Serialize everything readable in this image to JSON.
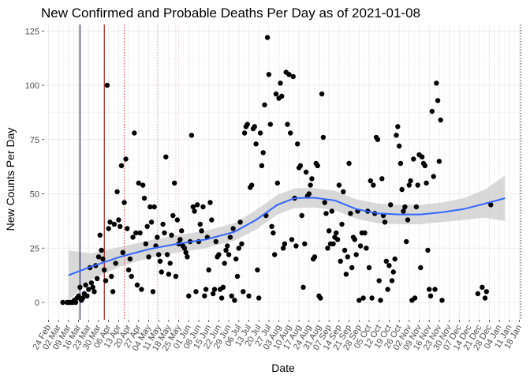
{
  "chart_data": {
    "type": "scatter",
    "title": "New Confirmed and Probable Deaths Per Day as of 2021-01-08",
    "xlabel": "Date",
    "ylabel": "New Counts Per Day",
    "xlim_day": [
      -3,
      332
    ],
    "ylim": [
      -8,
      128
    ],
    "y_ticks": [
      0,
      25,
      50,
      75,
      100,
      125
    ],
    "x_ticks": [
      {
        "day": 0,
        "label": "24 Feb"
      },
      {
        "day": 7,
        "label": "02 Mar"
      },
      {
        "day": 14,
        "label": "09 Mar"
      },
      {
        "day": 21,
        "label": "16 Mar"
      },
      {
        "day": 28,
        "label": "23 Mar"
      },
      {
        "day": 35,
        "label": "30 Mar"
      },
      {
        "day": 42,
        "label": "06 Apr"
      },
      {
        "day": 49,
        "label": "13 Apr"
      },
      {
        "day": 56,
        "label": "20 Apr"
      },
      {
        "day": 63,
        "label": "27 Apr"
      },
      {
        "day": 70,
        "label": "04 May"
      },
      {
        "day": 77,
        "label": "11 May"
      },
      {
        "day": 84,
        "label": "18 May"
      },
      {
        "day": 91,
        "label": "25 May"
      },
      {
        "day": 98,
        "label": "01 Jun"
      },
      {
        "day": 105,
        "label": "08 Jun"
      },
      {
        "day": 112,
        "label": "15 Jun"
      },
      {
        "day": 119,
        "label": "22 Jun"
      },
      {
        "day": 126,
        "label": "29 Jun"
      },
      {
        "day": 133,
        "label": "06 Jul"
      },
      {
        "day": 140,
        "label": "13 Jul"
      },
      {
        "day": 147,
        "label": "20 Jul"
      },
      {
        "day": 154,
        "label": "27 Jul"
      },
      {
        "day": 161,
        "label": "03 Aug"
      },
      {
        "day": 168,
        "label": "10 Aug"
      },
      {
        "day": 175,
        "label": "17 Aug"
      },
      {
        "day": 182,
        "label": "24 Aug"
      },
      {
        "day": 189,
        "label": "31 Aug"
      },
      {
        "day": 196,
        "label": "07 Sep"
      },
      {
        "day": 203,
        "label": "14 Sep"
      },
      {
        "day": 210,
        "label": "21 Sep"
      },
      {
        "day": 217,
        "label": "28 Sep"
      },
      {
        "day": 224,
        "label": "05 Oct"
      },
      {
        "day": 231,
        "label": "12 Oct"
      },
      {
        "day": 238,
        "label": "19 Oct"
      },
      {
        "day": 245,
        "label": "26 Oct"
      },
      {
        "day": 252,
        "label": "02 Nov"
      },
      {
        "day": 259,
        "label": "09 Nov"
      },
      {
        "day": 266,
        "label": "16 Nov"
      },
      {
        "day": 273,
        "label": "23 Nov"
      },
      {
        "day": 280,
        "label": "30 Nov"
      },
      {
        "day": 287,
        "label": "07 Dec"
      },
      {
        "day": 294,
        "label": "14 Dec"
      },
      {
        "day": 301,
        "label": "21 Dec"
      },
      {
        "day": 308,
        "label": "28 Dec"
      },
      {
        "day": 315,
        "label": "04 Jan"
      },
      {
        "day": 322,
        "label": "11 Jan"
      },
      {
        "day": 329,
        "label": "18 Jan"
      }
    ],
    "vertical_lines": [
      {
        "day": 22,
        "color": "#00004d",
        "style": "solid"
      },
      {
        "day": 39,
        "color": "#8b0000",
        "style": "solid"
      },
      {
        "day": 53,
        "color": "#e33b3b",
        "style": "dotted"
      },
      {
        "day": 76,
        "color": "#ff9999",
        "style": "dotted"
      },
      {
        "day": 89,
        "color": "#ffb6c1",
        "style": "dotted"
      },
      {
        "day": 330,
        "color": "#333333",
        "style": "dotted"
      }
    ],
    "smooth_line": {
      "color": "#3366ff",
      "ribbon_color": "#cccccc",
      "points": [
        {
          "x": 14,
          "y": 12.5,
          "se": 11.5
        },
        {
          "x": 30,
          "y": 16.5,
          "se": 6
        },
        {
          "x": 50,
          "y": 21,
          "se": 4.5
        },
        {
          "x": 70,
          "y": 24.5,
          "se": 4
        },
        {
          "x": 90,
          "y": 27,
          "se": 4
        },
        {
          "x": 110,
          "y": 29,
          "se": 4
        },
        {
          "x": 130,
          "y": 32.5,
          "se": 4
        },
        {
          "x": 145,
          "y": 38,
          "se": 4.5
        },
        {
          "x": 160,
          "y": 45,
          "se": 4.5
        },
        {
          "x": 172,
          "y": 48,
          "se": 4.5
        },
        {
          "x": 185,
          "y": 48.2,
          "se": 4.5
        },
        {
          "x": 200,
          "y": 47,
          "se": 4.5
        },
        {
          "x": 215,
          "y": 43,
          "se": 4.5
        },
        {
          "x": 230,
          "y": 41,
          "se": 4.5
        },
        {
          "x": 245,
          "y": 40.5,
          "se": 4.5
        },
        {
          "x": 260,
          "y": 40.5,
          "se": 4.5
        },
        {
          "x": 275,
          "y": 41.5,
          "se": 4.5
        },
        {
          "x": 290,
          "y": 43,
          "se": 5
        },
        {
          "x": 305,
          "y": 45.5,
          "se": 6.5
        },
        {
          "x": 319,
          "y": 48,
          "se": 10.5
        }
      ]
    },
    "point_color": "#000000",
    "points": [
      {
        "x": 10,
        "y": 0
      },
      {
        "x": 13,
        "y": 0
      },
      {
        "x": 14,
        "y": 0
      },
      {
        "x": 15,
        "y": 0
      },
      {
        "x": 16,
        "y": 0
      },
      {
        "x": 17,
        "y": 0
      },
      {
        "x": 18,
        "y": 1
      },
      {
        "x": 19,
        "y": 0
      },
      {
        "x": 20,
        "y": 2
      },
      {
        "x": 21,
        "y": 3
      },
      {
        "x": 22,
        "y": 7
      },
      {
        "x": 23,
        "y": 1
      },
      {
        "x": 24,
        "y": 2
      },
      {
        "x": 25,
        "y": 4
      },
      {
        "x": 26,
        "y": 8
      },
      {
        "x": 27,
        "y": 3
      },
      {
        "x": 28,
        "y": 6
      },
      {
        "x": 29,
        "y": 16
      },
      {
        "x": 30,
        "y": 9
      },
      {
        "x": 31,
        "y": 7
      },
      {
        "x": 32,
        "y": 5
      },
      {
        "x": 33,
        "y": 17
      },
      {
        "x": 34,
        "y": 11
      },
      {
        "x": 35,
        "y": 21
      },
      {
        "x": 36,
        "y": 31
      },
      {
        "x": 37,
        "y": 24
      },
      {
        "x": 38,
        "y": 20
      },
      {
        "x": 39,
        "y": 15
      },
      {
        "x": 40,
        "y": 10
      },
      {
        "x": 41,
        "y": 100
      },
      {
        "x": 42,
        "y": 34
      },
      {
        "x": 43,
        "y": 37
      },
      {
        "x": 44,
        "y": 12
      },
      {
        "x": 45,
        "y": 5
      },
      {
        "x": 46,
        "y": 36
      },
      {
        "x": 47,
        "y": 18
      },
      {
        "x": 48,
        "y": 51
      },
      {
        "x": 49,
        "y": 38
      },
      {
        "x": 50,
        "y": 35
      },
      {
        "x": 51,
        "y": 63
      },
      {
        "x": 52,
        "y": 23
      },
      {
        "x": 53,
        "y": 46
      },
      {
        "x": 54,
        "y": 66
      },
      {
        "x": 55,
        "y": 34
      },
      {
        "x": 56,
        "y": 15
      },
      {
        "x": 57,
        "y": 20
      },
      {
        "x": 58,
        "y": 12
      },
      {
        "x": 59,
        "y": 30
      },
      {
        "x": 60,
        "y": 78
      },
      {
        "x": 61,
        "y": 32
      },
      {
        "x": 62,
        "y": 8
      },
      {
        "x": 63,
        "y": 55
      },
      {
        "x": 64,
        "y": 32
      },
      {
        "x": 65,
        "y": 6
      },
      {
        "x": 66,
        "y": 54
      },
      {
        "x": 67,
        "y": 48
      },
      {
        "x": 68,
        "y": 27
      },
      {
        "x": 69,
        "y": 35
      },
      {
        "x": 70,
        "y": 21
      },
      {
        "x": 71,
        "y": 44
      },
      {
        "x": 72,
        "y": 37
      },
      {
        "x": 73,
        "y": 5
      },
      {
        "x": 74,
        "y": 44
      },
      {
        "x": 75,
        "y": 26
      },
      {
        "x": 76,
        "y": 30
      },
      {
        "x": 77,
        "y": 22
      },
      {
        "x": 78,
        "y": 19
      },
      {
        "x": 79,
        "y": 14
      },
      {
        "x": 80,
        "y": 36
      },
      {
        "x": 81,
        "y": 32
      },
      {
        "x": 82,
        "y": 67
      },
      {
        "x": 83,
        "y": 22
      },
      {
        "x": 84,
        "y": 13
      },
      {
        "x": 85,
        "y": 18
      },
      {
        "x": 86,
        "y": 31
      },
      {
        "x": 87,
        "y": 40
      },
      {
        "x": 88,
        "y": 55
      },
      {
        "x": 89,
        "y": 12
      },
      {
        "x": 90,
        "y": 38
      },
      {
        "x": 91,
        "y": 27
      },
      {
        "x": 92,
        "y": 29
      },
      {
        "x": 93,
        "y": 33
      },
      {
        "x": 94,
        "y": 26
      },
      {
        "x": 95,
        "y": 25
      },
      {
        "x": 96,
        "y": 23
      },
      {
        "x": 97,
        "y": 21
      },
      {
        "x": 98,
        "y": 3
      },
      {
        "x": 99,
        "y": 28
      },
      {
        "x": 100,
        "y": 77
      },
      {
        "x": 101,
        "y": 44
      },
      {
        "x": 102,
        "y": 42
      },
      {
        "x": 103,
        "y": 5
      },
      {
        "x": 104,
        "y": 45
      },
      {
        "x": 105,
        "y": 28
      },
      {
        "x": 106,
        "y": 36
      },
      {
        "x": 107,
        "y": 33
      },
      {
        "x": 108,
        "y": 44
      },
      {
        "x": 109,
        "y": 3
      },
      {
        "x": 110,
        "y": 6
      },
      {
        "x": 111,
        "y": 30
      },
      {
        "x": 112,
        "y": 15
      },
      {
        "x": 113,
        "y": 46
      },
      {
        "x": 114,
        "y": 38
      },
      {
        "x": 115,
        "y": 4
      },
      {
        "x": 116,
        "y": 6
      },
      {
        "x": 117,
        "y": 28
      },
      {
        "x": 118,
        "y": 21
      },
      {
        "x": 119,
        "y": 22
      },
      {
        "x": 120,
        "y": 6
      },
      {
        "x": 121,
        "y": 2
      },
      {
        "x": 122,
        "y": 7
      },
      {
        "x": 123,
        "y": 18
      },
      {
        "x": 124,
        "y": 24
      },
      {
        "x": 125,
        "y": 26
      },
      {
        "x": 126,
        "y": 22
      },
      {
        "x": 127,
        "y": 30
      },
      {
        "x": 128,
        "y": 3
      },
      {
        "x": 129,
        "y": 34
      },
      {
        "x": 130,
        "y": 1
      },
      {
        "x": 131,
        "y": 20
      },
      {
        "x": 132,
        "y": 12
      },
      {
        "x": 133,
        "y": 25
      },
      {
        "x": 134,
        "y": 37
      },
      {
        "x": 135,
        "y": 27
      },
      {
        "x": 136,
        "y": 5
      },
      {
        "x": 137,
        "y": 78
      },
      {
        "x": 138,
        "y": 81
      },
      {
        "x": 139,
        "y": 82
      },
      {
        "x": 140,
        "y": 3
      },
      {
        "x": 141,
        "y": 53
      },
      {
        "x": 142,
        "y": 54
      },
      {
        "x": 143,
        "y": 80
      },
      {
        "x": 144,
        "y": 81
      },
      {
        "x": 145,
        "y": 73
      },
      {
        "x": 146,
        "y": 15
      },
      {
        "x": 147,
        "y": 2
      },
      {
        "x": 148,
        "y": 78
      },
      {
        "x": 149,
        "y": 63
      },
      {
        "x": 150,
        "y": 69
      },
      {
        "x": 151,
        "y": 91
      },
      {
        "x": 152,
        "y": 40
      },
      {
        "x": 153,
        "y": 122
      },
      {
        "x": 154,
        "y": 105
      },
      {
        "x": 155,
        "y": 82
      },
      {
        "x": 156,
        "y": 35
      },
      {
        "x": 157,
        "y": 32
      },
      {
        "x": 158,
        "y": 22
      },
      {
        "x": 159,
        "y": 96
      },
      {
        "x": 160,
        "y": 55
      },
      {
        "x": 161,
        "y": 94
      },
      {
        "x": 162,
        "y": 101
      },
      {
        "x": 163,
        "y": 95
      },
      {
        "x": 164,
        "y": 25
      },
      {
        "x": 165,
        "y": 27
      },
      {
        "x": 166,
        "y": 106
      },
      {
        "x": 167,
        "y": 82
      },
      {
        "x": 168,
        "y": 105
      },
      {
        "x": 169,
        "y": 78
      },
      {
        "x": 170,
        "y": 29
      },
      {
        "x": 171,
        "y": 104
      },
      {
        "x": 172,
        "y": 48
      },
      {
        "x": 173,
        "y": 26
      },
      {
        "x": 174,
        "y": 73
      },
      {
        "x": 175,
        "y": 62
      },
      {
        "x": 176,
        "y": 63
      },
      {
        "x": 177,
        "y": 40
      },
      {
        "x": 178,
        "y": 7
      },
      {
        "x": 179,
        "y": 27
      },
      {
        "x": 180,
        "y": 60
      },
      {
        "x": 181,
        "y": 49
      },
      {
        "x": 182,
        "y": 50
      },
      {
        "x": 183,
        "y": 54
      },
      {
        "x": 184,
        "y": 57
      },
      {
        "x": 185,
        "y": 20
      },
      {
        "x": 186,
        "y": 21
      },
      {
        "x": 187,
        "y": 64
      },
      {
        "x": 188,
        "y": 63
      },
      {
        "x": 189,
        "y": 3
      },
      {
        "x": 190,
        "y": 2
      },
      {
        "x": 191,
        "y": 96
      },
      {
        "x": 192,
        "y": 76
      },
      {
        "x": 193,
        "y": 46
      },
      {
        "x": 194,
        "y": 41
      },
      {
        "x": 195,
        "y": 25
      },
      {
        "x": 196,
        "y": 33
      },
      {
        "x": 197,
        "y": 27
      },
      {
        "x": 198,
        "y": 42
      },
      {
        "x": 199,
        "y": 27
      },
      {
        "x": 200,
        "y": 30
      },
      {
        "x": 201,
        "y": 32
      },
      {
        "x": 202,
        "y": 29
      },
      {
        "x": 203,
        "y": 54
      },
      {
        "x": 204,
        "y": 19
      },
      {
        "x": 205,
        "y": 36
      },
      {
        "x": 206,
        "y": 51
      },
      {
        "x": 207,
        "y": 24
      },
      {
        "x": 208,
        "y": 13
      },
      {
        "x": 209,
        "y": 21
      },
      {
        "x": 210,
        "y": 64
      },
      {
        "x": 211,
        "y": 41
      },
      {
        "x": 212,
        "y": 16
      },
      {
        "x": 213,
        "y": 30
      },
      {
        "x": 214,
        "y": 29
      },
      {
        "x": 215,
        "y": 22
      },
      {
        "x": 216,
        "y": 42
      },
      {
        "x": 217,
        "y": 1
      },
      {
        "x": 218,
        "y": 26
      },
      {
        "x": 219,
        "y": 32
      },
      {
        "x": 220,
        "y": 2
      },
      {
        "x": 221,
        "y": 32
      },
      {
        "x": 222,
        "y": 25
      },
      {
        "x": 223,
        "y": 42
      },
      {
        "x": 224,
        "y": 16
      },
      {
        "x": 225,
        "y": 56
      },
      {
        "x": 226,
        "y": 2
      },
      {
        "x": 227,
        "y": 54
      },
      {
        "x": 228,
        "y": 41
      },
      {
        "x": 229,
        "y": 76
      },
      {
        "x": 230,
        "y": 75
      },
      {
        "x": 231,
        "y": 10
      },
      {
        "x": 232,
        "y": 1
      },
      {
        "x": 233,
        "y": 57
      },
      {
        "x": 234,
        "y": 40
      },
      {
        "x": 235,
        "y": 37
      },
      {
        "x": 236,
        "y": 19
      },
      {
        "x": 237,
        "y": 6
      },
      {
        "x": 238,
        "y": 17
      },
      {
        "x": 239,
        "y": 45
      },
      {
        "x": 240,
        "y": 10
      },
      {
        "x": 241,
        "y": 14
      },
      {
        "x": 242,
        "y": 20
      },
      {
        "x": 243,
        "y": 77
      },
      {
        "x": 244,
        "y": 81
      },
      {
        "x": 245,
        "y": 72
      },
      {
        "x": 246,
        "y": 64
      },
      {
        "x": 247,
        "y": 52
      },
      {
        "x": 248,
        "y": 42
      },
      {
        "x": 249,
        "y": 44
      },
      {
        "x": 250,
        "y": 28
      },
      {
        "x": 251,
        "y": 38
      },
      {
        "x": 252,
        "y": 54
      },
      {
        "x": 253,
        "y": 56
      },
      {
        "x": 254,
        "y": 1
      },
      {
        "x": 255,
        "y": 66
      },
      {
        "x": 256,
        "y": 2
      },
      {
        "x": 257,
        "y": 44
      },
      {
        "x": 258,
        "y": 54
      },
      {
        "x": 259,
        "y": 68
      },
      {
        "x": 260,
        "y": 16
      },
      {
        "x": 261,
        "y": 67
      },
      {
        "x": 262,
        "y": 64
      },
      {
        "x": 263,
        "y": 63
      },
      {
        "x": 264,
        "y": 55
      },
      {
        "x": 265,
        "y": 24
      },
      {
        "x": 266,
        "y": 6
      },
      {
        "x": 267,
        "y": 3
      },
      {
        "x": 268,
        "y": 88
      },
      {
        "x": 269,
        "y": 58
      },
      {
        "x": 270,
        "y": 6
      },
      {
        "x": 271,
        "y": 101
      },
      {
        "x": 272,
        "y": 93
      },
      {
        "x": 273,
        "y": 65
      },
      {
        "x": 274,
        "y": 84
      },
      {
        "x": 275,
        "y": 1
      },
      {
        "x": 300,
        "y": 4
      },
      {
        "x": 303,
        "y": 7
      },
      {
        "x": 305,
        "y": 2
      },
      {
        "x": 306,
        "y": 5
      },
      {
        "x": 309,
        "y": 45
      }
    ]
  }
}
